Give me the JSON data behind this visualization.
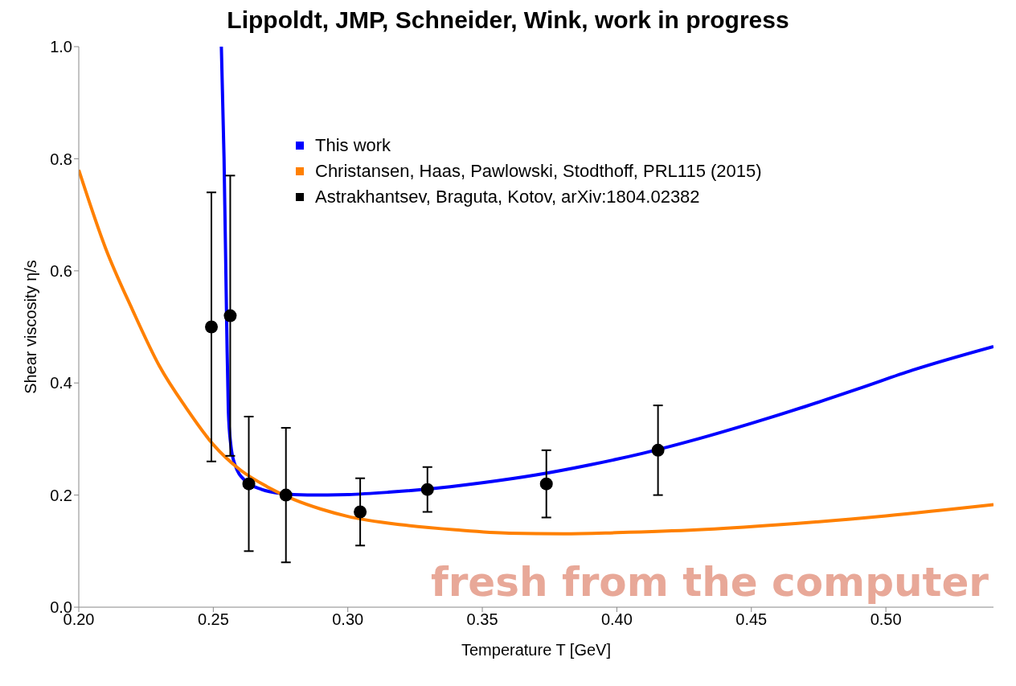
{
  "chart_data": {
    "type": "line",
    "title": "Lippoldt, JMP, Schneider, Wink, work in progress",
    "xlabel": "Temperature T [GeV]",
    "ylabel": "Shear viscosity η/s",
    "xlim": [
      0.2,
      0.54
    ],
    "xticks": [
      {
        "value": 0.2,
        "label": "0.20"
      },
      {
        "value": 0.25,
        "label": "0.25"
      },
      {
        "value": 0.3,
        "label": "0.30"
      },
      {
        "value": 0.35,
        "label": "0.35"
      },
      {
        "value": 0.4,
        "label": "0.40"
      },
      {
        "value": 0.45,
        "label": "0.45"
      },
      {
        "value": 0.5,
        "label": "0.50"
      }
    ],
    "ylim": [
      0,
      1
    ],
    "yticks": [
      {
        "value": 0,
        "label": "0.0"
      },
      {
        "value": 0.2,
        "label": "0.2"
      },
      {
        "value": 0.4,
        "label": "0.4"
      },
      {
        "value": 0.6,
        "label": "0.6"
      },
      {
        "value": 0.8,
        "label": "0.8"
      },
      {
        "value": 1,
        "label": "1.0"
      }
    ],
    "grid": false,
    "legend": "top",
    "annotations": [
      "fresh from the computer"
    ],
    "series": [
      {
        "name": "This work",
        "color": "#0000ff",
        "marker": "none",
        "x": [
          0.253,
          0.254,
          0.255,
          0.2556,
          0.2565,
          0.258,
          0.262,
          0.268,
          0.275,
          0.285,
          0.3,
          0.315,
          0.338,
          0.35,
          0.37,
          0.39,
          0.41,
          0.43,
          0.45,
          0.47,
          0.49,
          0.51,
          0.54
        ],
        "values": [
          1.0,
          0.8,
          0.5,
          0.35,
          0.29,
          0.255,
          0.225,
          0.21,
          0.203,
          0.2,
          0.201,
          0.205,
          0.215,
          0.222,
          0.236,
          0.254,
          0.275,
          0.3,
          0.328,
          0.358,
          0.39,
          0.423,
          0.465
        ]
      },
      {
        "name": "Christansen, Haas, Pawlowski, Stodthoff, PRL115 (2015)",
        "color": "#ff8000",
        "marker": "none",
        "x": [
          0.2,
          0.21,
          0.22,
          0.23,
          0.24,
          0.25,
          0.26,
          0.27,
          0.28,
          0.29,
          0.3,
          0.32,
          0.34,
          0.36,
          0.38,
          0.4,
          0.43,
          0.46,
          0.5,
          0.54
        ],
        "values": [
          0.78,
          0.64,
          0.53,
          0.43,
          0.355,
          0.29,
          0.245,
          0.215,
          0.192,
          0.175,
          0.162,
          0.147,
          0.138,
          0.132,
          0.131,
          0.133,
          0.138,
          0.147,
          0.163,
          0.183
        ]
      },
      {
        "name": "Astrakhantsev, Braguta, Kotov, arXiv:1804.02382",
        "type": "scatter",
        "color": "#000000",
        "marker": "circle",
        "x": [
          0.2493,
          0.2563,
          0.2632,
          0.277,
          0.3046,
          0.3296,
          0.3738,
          0.4153
        ],
        "values": [
          0.5,
          0.52,
          0.22,
          0.2,
          0.17,
          0.21,
          0.22,
          0.28
        ],
        "errors": [
          [
            0.26,
            0.74
          ],
          [
            0.27,
            0.77
          ],
          [
            0.1,
            0.34
          ],
          [
            0.08,
            0.32
          ],
          [
            0.11,
            0.23
          ],
          [
            0.17,
            0.25
          ],
          [
            0.16,
            0.28
          ],
          [
            0.2,
            0.36
          ]
        ]
      }
    ]
  }
}
